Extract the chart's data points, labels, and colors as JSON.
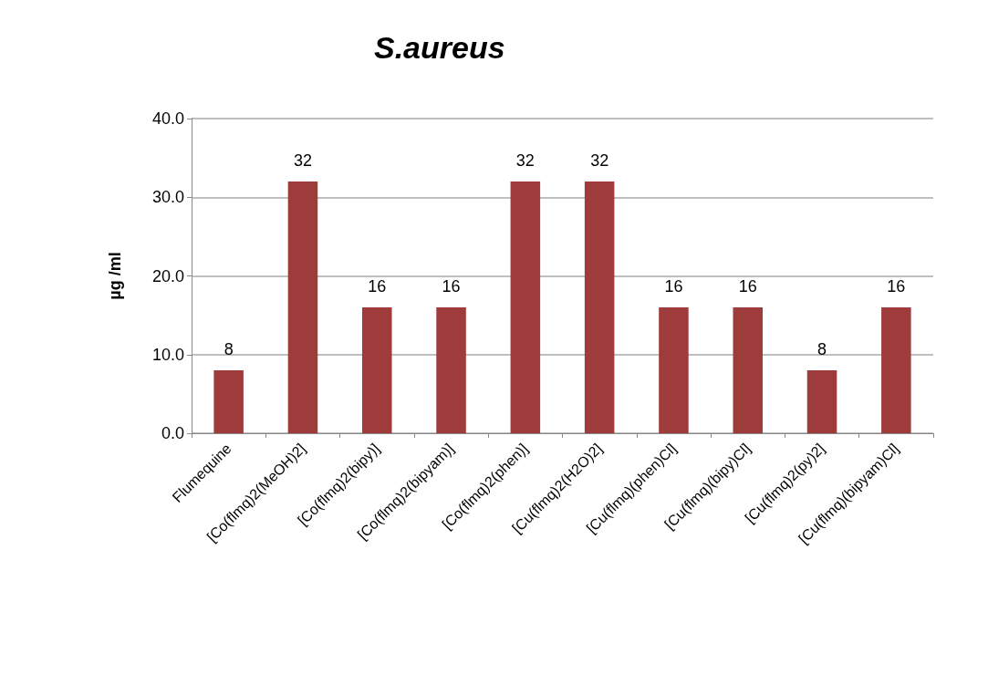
{
  "chart_data": {
    "type": "bar",
    "title": "S.aureus",
    "ylabel": "µg /ml",
    "categories": [
      "Flumequine",
      "[Co(flmq)2(MeOH)2]",
      "[Co(flmq)2(bipy)]",
      "[Co(flmq)2(bipyam)]",
      "[Co(flmq)2(phen)]",
      "[Cu(flmq)2(H2O)2]",
      "[Cu(flmq)(phen)Cl]",
      "[Cu(flmq)(bipy)Cl]",
      "[Cu(flmq)2(py)2]",
      "[Cu(flmq)(bipyam)Cl]"
    ],
    "values": [
      8,
      32,
      16,
      16,
      32,
      32,
      16,
      16,
      8,
      16
    ],
    "color": "#9e3b3b",
    "ylim": [
      0,
      40
    ],
    "yticks": [
      {
        "value": 0,
        "label": "0.0"
      },
      {
        "value": 10,
        "label": "10.0"
      },
      {
        "value": 20,
        "label": "20.0"
      },
      {
        "value": 30,
        "label": "30.0"
      },
      {
        "value": 40,
        "label": "40.0"
      }
    ],
    "grid": "y",
    "data_labels": true
  }
}
